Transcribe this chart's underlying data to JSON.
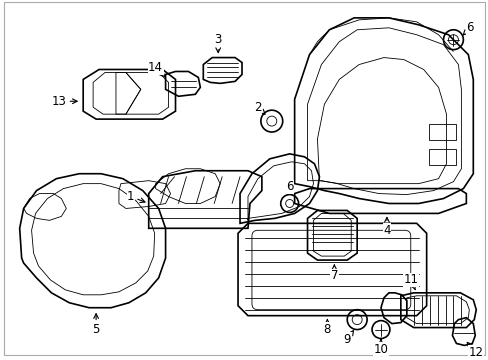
{
  "background_color": "#ffffff",
  "line_color": "#000000",
  "fig_width": 4.89,
  "fig_height": 3.6,
  "dpi": 100,
  "lw_main": 1.2,
  "lw_thin": 0.6,
  "lw_thick": 1.8,
  "font_size": 8.5,
  "border_color": "#aaaaaa",
  "border_lw": 0.8
}
